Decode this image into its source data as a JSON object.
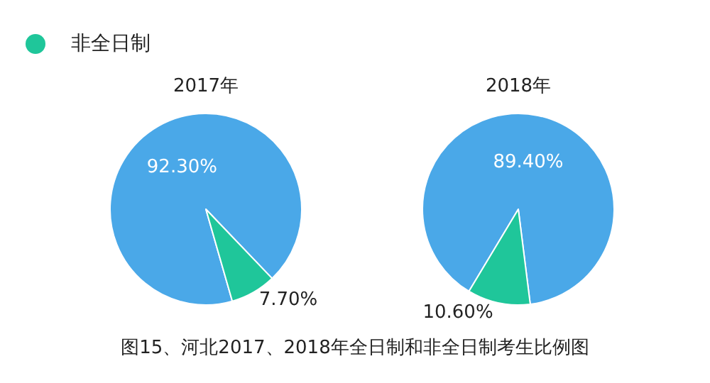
{
  "chart_data": [
    {
      "type": "pie",
      "title": "2017年",
      "categories": [
        null,
        "非全日制"
      ],
      "values": [
        92.3,
        7.7
      ],
      "colors": [
        "#4aa8e8",
        "#1fc69a"
      ],
      "value_labels": [
        "92.30%",
        "7.70%"
      ],
      "legend": "top left"
    },
    {
      "type": "pie",
      "title": "2018年",
      "categories": [
        null,
        null
      ],
      "values": [
        89.4,
        10.6
      ],
      "colors": [
        "#4aa8e8",
        "#1fc69a"
      ],
      "value_labels": [
        "89.40%",
        "10.60%"
      ],
      "annotations": [
        "图15、河北2017、2018年全日制和非全日制考生比例图"
      ]
    }
  ]
}
